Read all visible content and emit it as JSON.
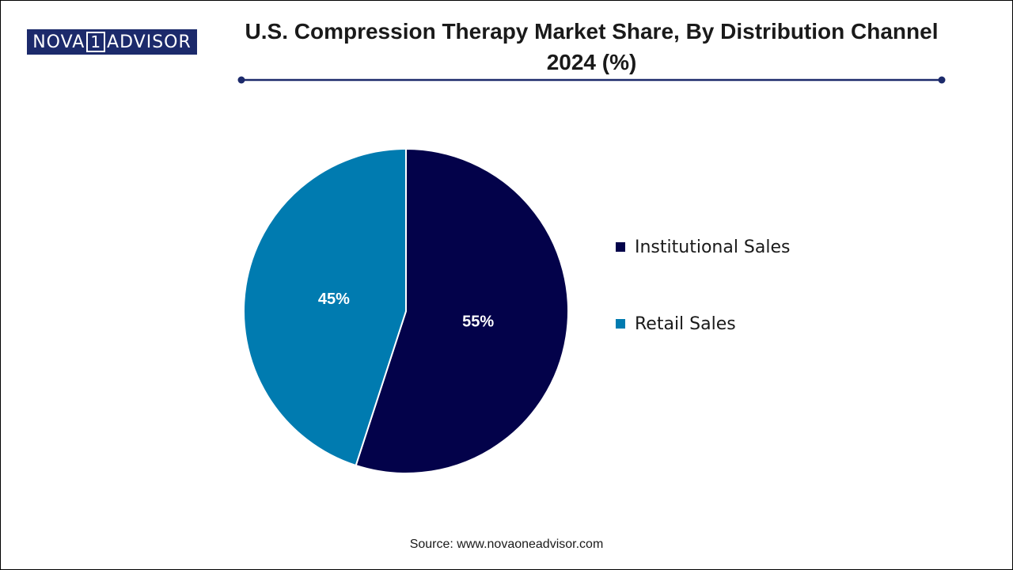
{
  "logo": {
    "left": "NOVA",
    "mark": "1",
    "right": "ADVISOR",
    "color": "#1c2a6b"
  },
  "title": "U.S. Compression Therapy Market Share, By Distribution Channel 2024 (%)",
  "source": "Source: www.novaoneadvisor.com",
  "chart_data": {
    "type": "pie",
    "title": "U.S. Compression Therapy Market Share, By Distribution Channel 2024 (%)",
    "slices": [
      {
        "label": "Institutional Sales",
        "value": 55,
        "display": "55%",
        "color": "#03024a"
      },
      {
        "label": "Retail Sales",
        "value": 45,
        "display": "45%",
        "color": "#007bb0"
      }
    ],
    "legend_position": "right",
    "rule_color": "#1c2a6b"
  }
}
